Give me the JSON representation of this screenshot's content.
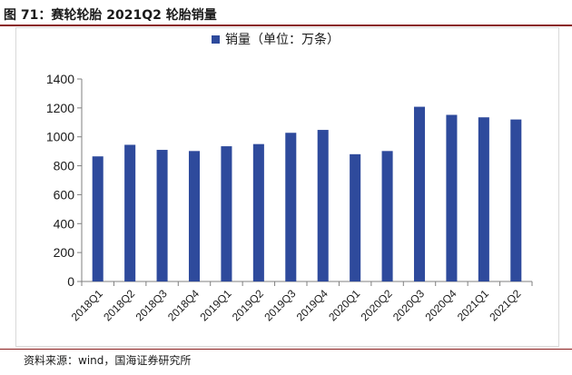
{
  "figure": {
    "title": "图 71：赛轮轮胎 2021Q2 轮胎销量",
    "source": "资料来源：wind，国海证券研究所"
  },
  "colors": {
    "bar": "#2E4A9C",
    "axis": "#7f7f7f",
    "accent_rule": "#8a1c1c"
  },
  "chart_data": {
    "type": "bar",
    "title": "",
    "xlabel": "",
    "ylabel": "",
    "categories": [
      "2018Q1",
      "2018Q2",
      "2018Q3",
      "2018Q4",
      "2019Q1",
      "2019Q2",
      "2019Q3",
      "2019Q4",
      "2020Q1",
      "2020Q2",
      "2020Q3",
      "2020Q4",
      "2021Q1",
      "2021Q2"
    ],
    "series": [
      {
        "name": "销量（单位：万条）",
        "values": [
          865,
          945,
          910,
          902,
          935,
          950,
          1028,
          1048,
          880,
          902,
          1208,
          1152,
          1135,
          1120
        ]
      }
    ],
    "ylim": [
      0,
      1400
    ],
    "yticks": [
      0,
      200,
      400,
      600,
      800,
      1000,
      1200,
      1400
    ],
    "grid": false,
    "legend": "top-center"
  }
}
